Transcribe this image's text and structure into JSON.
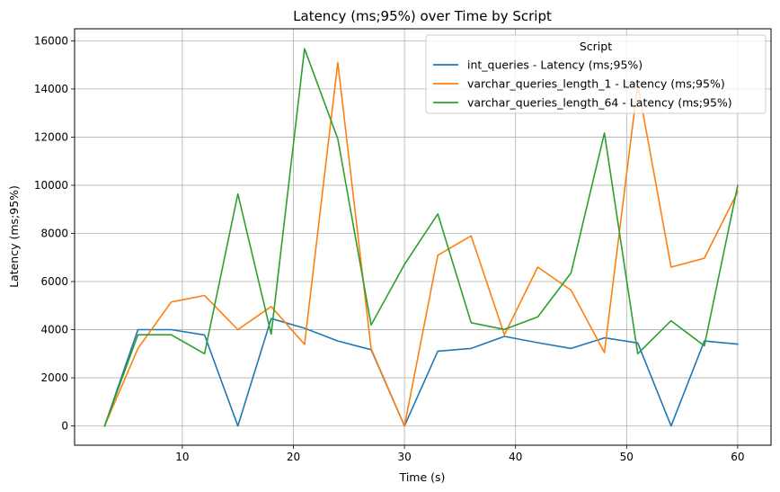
{
  "chart_data": {
    "type": "line",
    "title": "Latency (ms;95%) over Time by Script",
    "xlabel": "Time (s)",
    "ylabel": "Latency (ms;95%)",
    "xlim": [
      0.3,
      63
    ],
    "ylim": [
      -800,
      16500
    ],
    "xticks": [
      10,
      20,
      30,
      40,
      50,
      60
    ],
    "yticks": [
      0,
      2000,
      4000,
      6000,
      8000,
      10000,
      12000,
      14000,
      16000
    ],
    "grid": true,
    "legend": {
      "title": "Script",
      "placement": "top-right"
    },
    "x": [
      3,
      6,
      9,
      12,
      15,
      18,
      21,
      24,
      27,
      30,
      33,
      36,
      39,
      42,
      45,
      48,
      51,
      54,
      57,
      60
    ],
    "series": [
      {
        "name": "int_queries - Latency (ms;95%)",
        "color": "#1f77b4",
        "values": [
          0,
          4000,
          4000,
          3780,
          0,
          4460,
          4060,
          3530,
          3170,
          0,
          3110,
          3220,
          3720,
          3460,
          3220,
          3660,
          3450,
          0,
          3530,
          3400
        ]
      },
      {
        "name": "varchar_queries_length_1 - Latency (ms;95%)",
        "color": "#ff7f0e",
        "values": [
          0,
          3220,
          5150,
          5420,
          4000,
          4960,
          3390,
          15100,
          3210,
          0,
          7090,
          7900,
          3790,
          6600,
          5640,
          3050,
          14200,
          6600,
          6970,
          9730
        ]
      },
      {
        "name": "varchar_queries_length_64 - Latency (ms;95%)",
        "color": "#2ca02c",
        "values": [
          0,
          3790,
          3790,
          3000,
          9640,
          3820,
          15670,
          11930,
          4200,
          6710,
          8810,
          4290,
          4010,
          4530,
          6360,
          12170,
          3000,
          4370,
          3330,
          9980
        ]
      }
    ]
  }
}
